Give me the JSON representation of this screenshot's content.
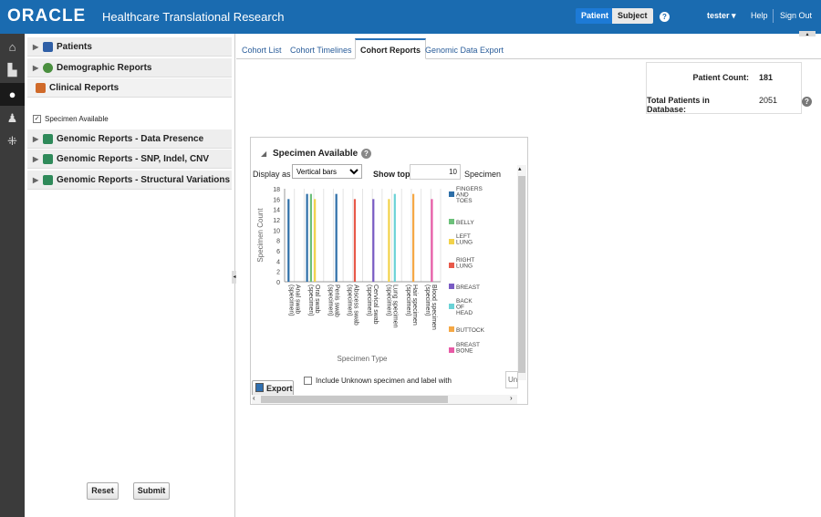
{
  "header": {
    "logo": "ORACLE",
    "app_title": "Healthcare Translational Research",
    "toggle_patient": "Patient",
    "toggle_subject": "Subject",
    "user": "tester",
    "help": "Help",
    "signout": "Sign Out"
  },
  "sidebar": {
    "sections": [
      {
        "label": "Patients",
        "icon_color": "#2f5fa6"
      },
      {
        "label": "Demographic Reports",
        "icon_color": "#4a8f3f"
      },
      {
        "label": "Clinical Reports",
        "icon_color": "#d06a2a"
      },
      {
        "label": "Genomic Reports - Data Presence",
        "icon_color": "#2f8a5a"
      },
      {
        "label": "Genomic Reports - SNP, Indel, CNV",
        "icon_color": "#2f8a5a"
      },
      {
        "label": "Genomic Reports - Structural Variations",
        "icon_color": "#2f8a5a"
      }
    ],
    "clinical_option": "Specimen Available",
    "reset": "Reset",
    "submit": "Submit"
  },
  "tabs": [
    "Cohort List",
    "Cohort Timelines",
    "Cohort Reports",
    "Genomic Data Export"
  ],
  "stats": {
    "patient_count_label": "Patient Count:",
    "patient_count": "181",
    "total_label": "Total Patients in Database:",
    "total": "2051"
  },
  "panel": {
    "title": "Specimen Available",
    "display_as_label": "Display as",
    "display_as_value": "Vertical bars",
    "show_top_label": "Show top",
    "show_top_value": "10",
    "show_top_suffix": "Specimen",
    "export": "Export",
    "unknown_label": "Include Unknown specimen and label with",
    "unknown_input": "Un"
  },
  "chart_data": {
    "type": "bar",
    "xlabel": "Specimen Type",
    "ylabel": "Specimen Count",
    "ylim": [
      0,
      18
    ],
    "yticks": [
      "0",
      "2",
      "4",
      "6",
      "8",
      "10",
      "12",
      "14",
      "16",
      "18"
    ],
    "categories": [
      "Anal swab (specimen)",
      "Oral swab (specimen)",
      "Penis swab (specimen)",
      "Abscess swab (specimen)",
      "Cervical swab (specimen)",
      "Lung specimen (specimen)",
      "Hair specimen (specimen)",
      "Blood specimen (specimen)"
    ],
    "series": [
      {
        "name": "FINGERS AND TOES",
        "color": "#2e6fa8",
        "values": [
          16,
          17,
          17,
          null,
          null,
          null,
          null,
          null
        ]
      },
      {
        "name": "BELLY",
        "color": "#6cc07a",
        "values": [
          null,
          17,
          null,
          null,
          null,
          null,
          null,
          null
        ]
      },
      {
        "name": "LEFT LUNG",
        "color": "#f2d24a",
        "values": [
          null,
          16,
          null,
          null,
          null,
          16,
          null,
          null
        ]
      },
      {
        "name": "RIGHT LUNG",
        "color": "#e8594a",
        "values": [
          null,
          null,
          null,
          16,
          null,
          null,
          null,
          null
        ]
      },
      {
        "name": "BREAST",
        "color": "#7a5cc4",
        "values": [
          null,
          null,
          null,
          null,
          16,
          null,
          null,
          null
        ]
      },
      {
        "name": "BACK OF HEAD",
        "color": "#6ad2d6",
        "values": [
          null,
          null,
          null,
          null,
          null,
          17,
          null,
          null
        ]
      },
      {
        "name": "BUTTOCK",
        "color": "#f5a845",
        "values": [
          null,
          null,
          null,
          null,
          null,
          null,
          17,
          null
        ]
      },
      {
        "name": "BREAST BONE",
        "color": "#e85aa6",
        "values": [
          null,
          null,
          null,
          null,
          null,
          null,
          null,
          16
        ]
      }
    ]
  }
}
